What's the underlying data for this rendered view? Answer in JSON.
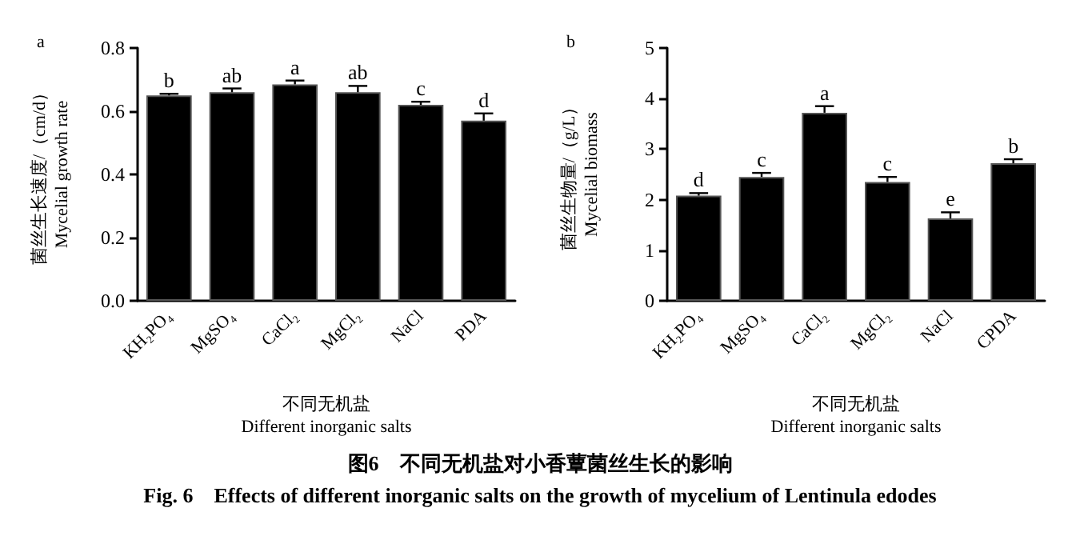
{
  "chart_data": [
    {
      "type": "bar",
      "title": "a",
      "ylabel": "菌丝生长速度/（cm/d）\nMycelial growth rate",
      "xlabel": "不同无机盐\nDifferent inorganic salts",
      "categories": [
        "KH₂PO₄",
        "MgSO₄",
        "CaCl₂",
        "MgCl₂",
        "NaCl",
        "PDA"
      ],
      "values": [
        0.65,
        0.66,
        0.685,
        0.66,
        0.62,
        0.57
      ],
      "errors": [
        0.005,
        0.012,
        0.012,
        0.02,
        0.01,
        0.023
      ],
      "value_labels": [
        "b",
        "ab",
        "a",
        "ab",
        "c",
        "d"
      ],
      "color": "#000000",
      "ylim": [
        0,
        0.8
      ],
      "yticks": [
        {
          "value": 0,
          "label": "0.0"
        },
        0.2,
        0.4,
        0.6,
        0.8
      ],
      "grid": false,
      "annotations": [
        "图6　不同无机盐对小香蕈菌丝生长的影响",
        "Fig. 6　Effects of different inorganic salts on the growth of mycelium of Lentinula edodes"
      ]
    },
    {
      "type": "bar",
      "title": "b",
      "ylabel": "菌丝生物量/（g/L）\nMycelial biomass",
      "xlabel": "不同无机盐\nDifferent inorganic salts",
      "categories": [
        "KH₂PO₄",
        "MgSO₄",
        "CaCl₂",
        "MgCl₂",
        "NaCl",
        "CPDA"
      ],
      "values": [
        2.08,
        2.45,
        3.72,
        2.35,
        1.63,
        2.72
      ],
      "errors": [
        0.05,
        0.08,
        0.13,
        0.1,
        0.12,
        0.08
      ],
      "value_labels": [
        "d",
        "c",
        "a",
        "c",
        "e",
        "b"
      ],
      "color": "#000000",
      "ylim": [
        0,
        5
      ],
      "yticks": [
        0,
        1,
        2,
        3,
        4,
        5
      ],
      "grid": false
    }
  ]
}
